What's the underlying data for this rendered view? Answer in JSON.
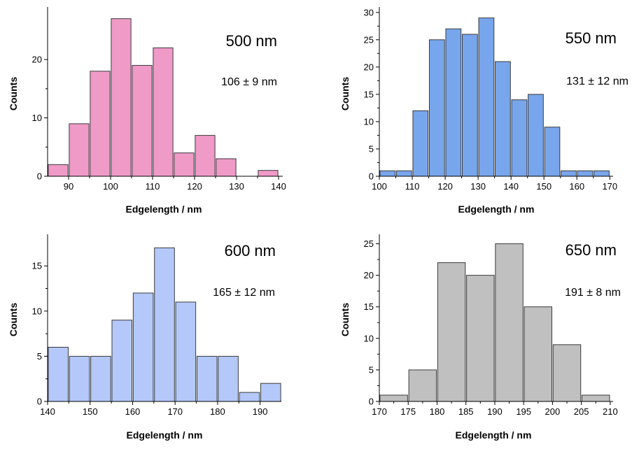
{
  "chart_data": [
    {
      "type": "bar",
      "title": "500 nm",
      "annotation": "106 ± 9 nm",
      "xlabel": "Edgelength / nm",
      "ylabel": "Counts",
      "color": "#f09ac8",
      "bin_width": 5,
      "xlim": [
        85,
        141
      ],
      "ylim": [
        0,
        29
      ],
      "xticks": [
        90,
        100,
        110,
        120,
        130,
        140
      ],
      "yticks": [
        0,
        10,
        20
      ],
      "bins": [
        {
          "x": 87.5,
          "y": 2
        },
        {
          "x": 92.5,
          "y": 9
        },
        {
          "x": 97.5,
          "y": 18
        },
        {
          "x": 102.5,
          "y": 27
        },
        {
          "x": 107.5,
          "y": 19
        },
        {
          "x": 112.5,
          "y": 22
        },
        {
          "x": 117.5,
          "y": 4
        },
        {
          "x": 122.5,
          "y": 7
        },
        {
          "x": 127.5,
          "y": 3
        },
        {
          "x": 137.5,
          "y": 1
        }
      ]
    },
    {
      "type": "bar",
      "title": "550 nm",
      "annotation": "131 ± 12 nm",
      "xlabel": "Edgelength / nm",
      "ylabel": "Counts",
      "color": "#78a6ec",
      "bin_width": 5,
      "xlim": [
        100,
        171
      ],
      "ylim": [
        0,
        31
      ],
      "xticks": [
        100,
        110,
        120,
        130,
        140,
        150,
        160,
        170
      ],
      "yticks": [
        0,
        5,
        10,
        15,
        20,
        25,
        30
      ],
      "bins": [
        {
          "x": 102.5,
          "y": 1
        },
        {
          "x": 107.5,
          "y": 1
        },
        {
          "x": 112.5,
          "y": 12
        },
        {
          "x": 117.5,
          "y": 25
        },
        {
          "x": 122.5,
          "y": 27
        },
        {
          "x": 127.5,
          "y": 26
        },
        {
          "x": 132.5,
          "y": 29
        },
        {
          "x": 137.5,
          "y": 21
        },
        {
          "x": 142.5,
          "y": 14
        },
        {
          "x": 147.5,
          "y": 15
        },
        {
          "x": 152.5,
          "y": 9
        },
        {
          "x": 157.5,
          "y": 1
        },
        {
          "x": 162.5,
          "y": 1
        },
        {
          "x": 167.5,
          "y": 1
        }
      ]
    },
    {
      "type": "bar",
      "title": "600 nm",
      "annotation": "165 ± 12 nm",
      "xlabel": "Edgelength / nm",
      "ylabel": "Counts",
      "color": "#b4c8fa",
      "bin_width": 5,
      "xlim": [
        140,
        195
      ],
      "ylim": [
        0,
        18.5
      ],
      "xticks": [
        140,
        150,
        160,
        170,
        180,
        190
      ],
      "yticks": [
        0,
        5,
        10,
        15
      ],
      "bins": [
        {
          "x": 142.5,
          "y": 6
        },
        {
          "x": 147.5,
          "y": 5
        },
        {
          "x": 152.5,
          "y": 5
        },
        {
          "x": 157.5,
          "y": 9
        },
        {
          "x": 162.5,
          "y": 12
        },
        {
          "x": 167.5,
          "y": 17
        },
        {
          "x": 172.5,
          "y": 11
        },
        {
          "x": 177.5,
          "y": 5
        },
        {
          "x": 182.5,
          "y": 5
        },
        {
          "x": 187.5,
          "y": 1
        },
        {
          "x": 192.5,
          "y": 2
        }
      ]
    },
    {
      "type": "bar",
      "title": "650 nm",
      "annotation": "191 ± 8 nm",
      "xlabel": "Edgelength / nm",
      "ylabel": "Counts",
      "color": "#c0c0c0",
      "bin_width": 5,
      "xlim": [
        170,
        210.5
      ],
      "ylim": [
        0,
        26.5
      ],
      "xticks": [
        170,
        175,
        180,
        185,
        190,
        195,
        200,
        205,
        210
      ],
      "yticks": [
        0,
        5,
        10,
        15,
        20,
        25
      ],
      "bins": [
        {
          "x": 172.5,
          "y": 1
        },
        {
          "x": 177.5,
          "y": 5
        },
        {
          "x": 182.5,
          "y": 22
        },
        {
          "x": 187.5,
          "y": 20
        },
        {
          "x": 192.5,
          "y": 25
        },
        {
          "x": 197.5,
          "y": 15
        },
        {
          "x": 202.5,
          "y": 9
        },
        {
          "x": 207.5,
          "y": 1
        }
      ]
    }
  ]
}
